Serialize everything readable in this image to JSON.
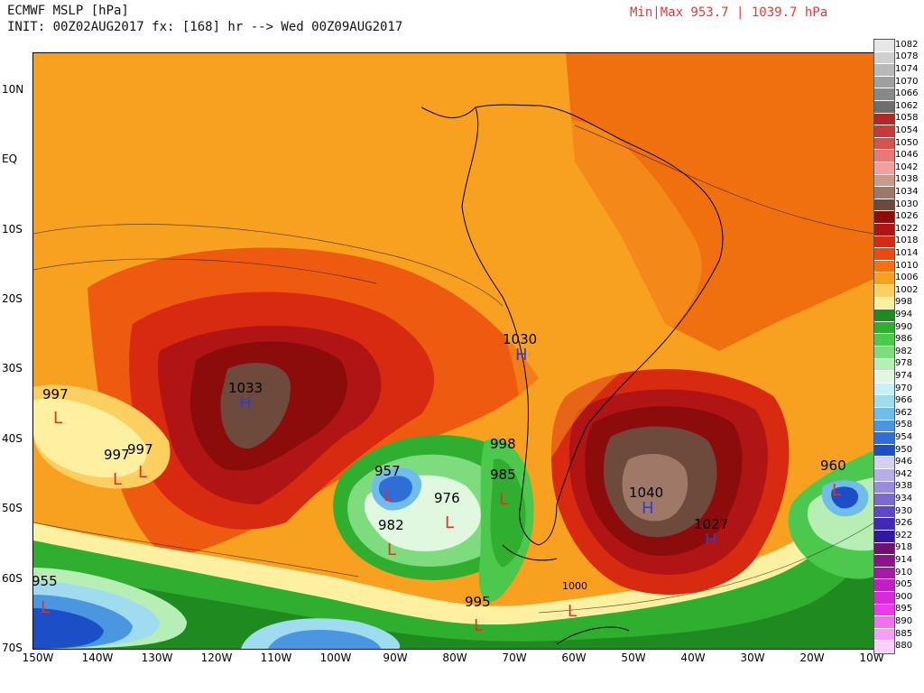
{
  "header": {
    "line1": "ECMWF MSLP [hPa]",
    "line2": "INIT: 00Z02AUG2017 fx: [168] hr --> Wed 00Z09AUG2017",
    "minmax": "Min|Max 953.7 | 1039.7 hPa"
  },
  "axes": {
    "lat_labels": [
      "10N",
      "EQ",
      "10S",
      "20S",
      "30S",
      "40S",
      "50S",
      "60S",
      "70S"
    ],
    "lon_labels": [
      "150W",
      "140W",
      "130W",
      "120W",
      "110W",
      "100W",
      "90W",
      "80W",
      "70W",
      "60W",
      "50W",
      "40W",
      "30W",
      "20W",
      "10W"
    ]
  },
  "colorbar": {
    "levels": [
      "1082",
      "1078",
      "1074",
      "1070",
      "1066",
      "1062",
      "1058",
      "1054",
      "1050",
      "1046",
      "1042",
      "1038",
      "1034",
      "1030",
      "1026",
      "1022",
      "1018",
      "1014",
      "1010",
      "1006",
      "1002",
      "998",
      "994",
      "990",
      "986",
      "982",
      "978",
      "974",
      "970",
      "966",
      "962",
      "958",
      "954",
      "950",
      "946",
      "942",
      "938",
      "934",
      "930",
      "926",
      "922",
      "918",
      "914",
      "910",
      "905",
      "900",
      "895",
      "890",
      "885",
      "880"
    ],
    "colors": [
      "#e6e6e6",
      "#cfcfcf",
      "#b8b8b8",
      "#a0a0a0",
      "#888888",
      "#6e6e6e",
      "#b02828",
      "#c63a3a",
      "#d85050",
      "#e87878",
      "#f0a0a0",
      "#c89a8a",
      "#a07868",
      "#6e4a3c",
      "#8c0c0c",
      "#b01414",
      "#d82a10",
      "#ee4a10",
      "#f87010",
      "#f8a020",
      "#fbd060",
      "#fdf0a0",
      "#1f8a1f",
      "#2fae2f",
      "#4cc84c",
      "#7edc7e",
      "#b6eeb6",
      "#e0f8e0",
      "#c8f0f8",
      "#a0dcf0",
      "#70bcea",
      "#4a96e0",
      "#2d6fd6",
      "#1c4ec8",
      "#d6d0f0",
      "#b8aee6",
      "#9a8cdc",
      "#7c6ad2",
      "#5e48c8",
      "#4028b8",
      "#3018a0",
      "#701070",
      "#8a148a",
      "#a818a8",
      "#c020c0",
      "#d82ad8",
      "#ec3aec",
      "#f070f0",
      "#f4a0f4",
      "#f8d0f8"
    ]
  },
  "systems": [
    {
      "type": "H",
      "value": "1033"
    },
    {
      "type": "H",
      "value": "1030"
    },
    {
      "type": "H",
      "value": "1040"
    },
    {
      "type": "H",
      "value": "1027"
    },
    {
      "type": "L",
      "value": "997"
    },
    {
      "type": "L",
      "value": "997"
    },
    {
      "type": "L",
      "value": "997"
    },
    {
      "type": "L",
      "value": "957"
    },
    {
      "type": "L",
      "value": "976"
    },
    {
      "type": "L",
      "value": "982"
    },
    {
      "type": "L",
      "value": "998"
    },
    {
      "type": "L",
      "value": "985"
    },
    {
      "type": "L",
      "value": "960"
    },
    {
      "type": "L",
      "value": "955"
    },
    {
      "type": "L",
      "value": "995"
    },
    {
      "type": "L",
      "value": "1000"
    }
  ]
}
